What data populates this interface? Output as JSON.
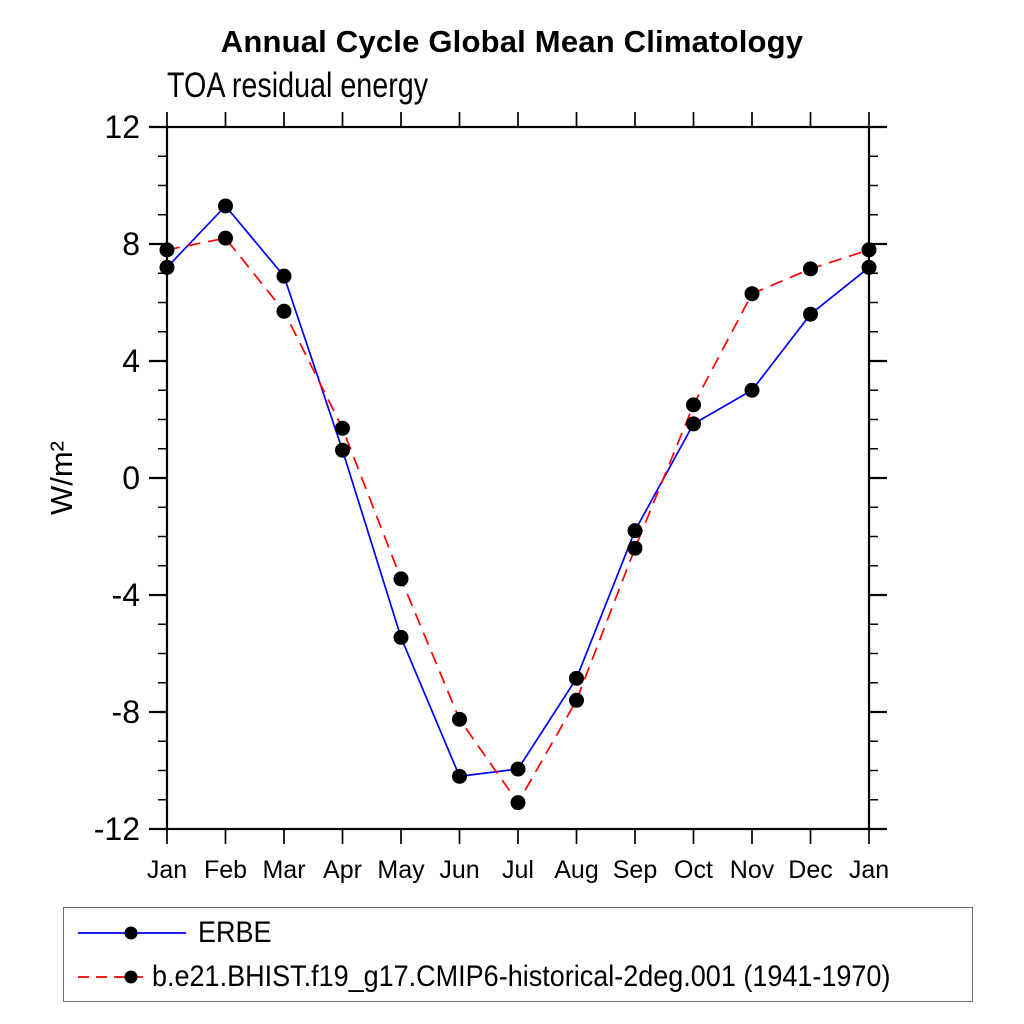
{
  "chart_data": {
    "type": "line",
    "title": "Annual Cycle Global Mean Climatology",
    "subtitle": "TOA residual energy",
    "ylabel": "W/m²",
    "xlabel": "",
    "categories": [
      "Jan",
      "Feb",
      "Mar",
      "Apr",
      "May",
      "Jun",
      "Jul",
      "Aug",
      "Sep",
      "Oct",
      "Nov",
      "Dec",
      "Jan"
    ],
    "ylim": [
      -12,
      12
    ],
    "ytick_major": [
      -12,
      -8,
      -4,
      0,
      4,
      8,
      12
    ],
    "ytick_minor_step": 1,
    "grid": false,
    "legend_position": "bottom",
    "marker_color": "#000000",
    "series": [
      {
        "name": "ERBE",
        "color": "#0000ff",
        "style": "solid",
        "marker": "circle",
        "values": [
          7.2,
          9.3,
          6.9,
          0.95,
          -5.45,
          -10.2,
          -9.95,
          -6.85,
          -1.8,
          1.85,
          3.0,
          5.6,
          7.2
        ]
      },
      {
        "name": "b.e21.BHIST.f19_g17.CMIP6-historical-2deg.001 (1941-1970)",
        "color": "#ff0000",
        "style": "dashed",
        "marker": "circle",
        "values": [
          7.8,
          8.2,
          5.7,
          1.7,
          -3.45,
          -8.25,
          -11.1,
          -7.6,
          -2.4,
          2.5,
          6.3,
          7.15,
          7.8
        ]
      }
    ]
  }
}
